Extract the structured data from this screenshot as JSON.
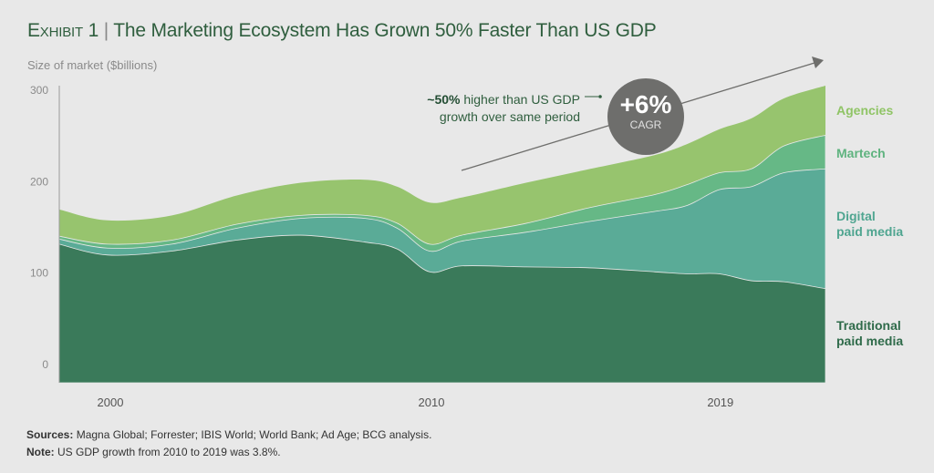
{
  "title": {
    "exhibit": "Exhibit 1",
    "separator": "|",
    "text": "The Marketing Ecosystem Has Grown 50% Faster Than US GDP"
  },
  "footer": {
    "sources_label": "Sources:",
    "sources": "Magna Global; Forrester; IBIS World; World Bank; Ad Age; BCG analysis.",
    "note_label": "Note:",
    "note": "US GDP growth from 2010 to 2019 was 3.8%."
  },
  "annotation": {
    "bold": "~50%",
    "line1": " higher than US GDP",
    "line2": "growth over same period",
    "cagr_value": "+6%",
    "cagr_label": "CAGR"
  },
  "chart_data": {
    "type": "area",
    "stacked": true,
    "title": "The Marketing Ecosystem Has Grown 50% Faster Than US GDP",
    "ylabel": "Size of market ($billions)",
    "xlabel": "",
    "ylim": [
      0,
      300
    ],
    "xlim": [
      1998.5,
      2022.3
    ],
    "yticks": [
      "0",
      "100",
      "200",
      "300"
    ],
    "xticks": [
      {
        "value": 2000,
        "label": "2000"
      },
      {
        "value": 2010,
        "label": "2010"
      },
      {
        "value": 2019,
        "label": "2019"
      }
    ],
    "grid": false,
    "legend": "right, labels next to series",
    "x": [
      1998.5,
      2000,
      2002,
      2004,
      2006,
      2008,
      2009,
      2010,
      2011,
      2013,
      2015,
      2017,
      2018,
      2019,
      2020,
      2021,
      2022.3
    ],
    "series": [
      {
        "name": "Traditional paid media",
        "label_lines": [
          "Traditional",
          "paid media"
        ],
        "color": "#3a7a5a",
        "label_color": "#2f6b4a",
        "values": [
          140,
          129,
          133,
          144,
          149,
          142,
          135,
          112,
          118,
          117,
          116,
          112,
          110,
          110,
          103,
          102,
          95
        ]
      },
      {
        "name": "Digital paid media",
        "label_lines": [
          "Digital",
          "paid media"
        ],
        "color": "#5aab97",
        "label_color": "#4fa590",
        "values": [
          5,
          7,
          7,
          12,
          17,
          24,
          21,
          21,
          25,
          35,
          47,
          61,
          69,
          85,
          95,
          110,
          121
        ]
      },
      {
        "name": "Martech",
        "label_lines": [
          "Martech"
        ],
        "color": "#66b886",
        "label_color": "#5fb37f",
        "values": [
          3,
          4,
          4,
          4,
          3,
          3,
          5,
          7,
          6,
          9,
          14,
          17,
          21,
          17,
          18,
          27,
          34
        ]
      },
      {
        "name": "Agencies",
        "label_lines": [
          "Agencies"
        ],
        "color": "#97c46e",
        "label_color": "#8fc465",
        "values": [
          27,
          24,
          25,
          29,
          33,
          36,
          37,
          42,
          38,
          41,
          39,
          40,
          41,
          44,
          51,
          48,
          50
        ]
      }
    ],
    "trend_arrow": {
      "color": "#6e6e6c"
    }
  }
}
